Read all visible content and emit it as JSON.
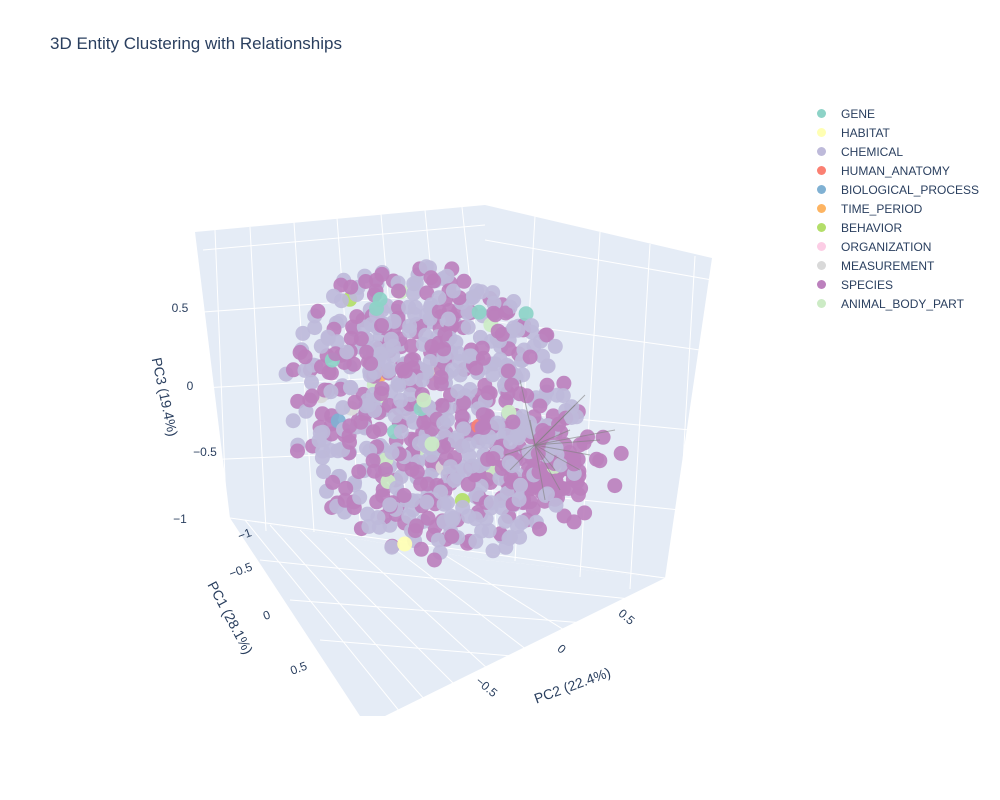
{
  "chart_data": {
    "type": "scatter3d",
    "title": "3D Entity Clustering with Relationships",
    "axes": {
      "x": {
        "label": "PC1 (28.1%)",
        "ticks": [
          "−1",
          "−0.5",
          "0",
          "0.5"
        ],
        "range": [
          -1,
          1
        ]
      },
      "y": {
        "label": "PC2 (22.4%)",
        "ticks": [
          "−0.5",
          "0",
          "0.5"
        ],
        "range": [
          -1,
          1
        ]
      },
      "z": {
        "label": "PC3 (19.4%)",
        "ticks": [
          "−1",
          "−0.5",
          "0",
          "0.5"
        ],
        "range": [
          -1,
          0.9
        ]
      }
    },
    "legend_position": "top-right",
    "series": [
      {
        "name": "GENE",
        "color": "#8dd3c7",
        "approx_count": 8
      },
      {
        "name": "HABITAT",
        "color": "#ffffb3",
        "approx_count": 2
      },
      {
        "name": "CHEMICAL",
        "color": "#bebada",
        "approx_count": 420
      },
      {
        "name": "HUMAN_ANATOMY",
        "color": "#fb8072",
        "approx_count": 2
      },
      {
        "name": "BIOLOGICAL_PROCESS",
        "color": "#80b1d3",
        "approx_count": 2
      },
      {
        "name": "TIME_PERIOD",
        "color": "#fdb462",
        "approx_count": 1
      },
      {
        "name": "BEHAVIOR",
        "color": "#b3de69",
        "approx_count": 2
      },
      {
        "name": "ORGANIZATION",
        "color": "#fccde5",
        "approx_count": 1
      },
      {
        "name": "MEASUREMENT",
        "color": "#d9d9d9",
        "approx_count": 3
      },
      {
        "name": "SPECIES",
        "color": "#bc80bd",
        "approx_count": 420
      },
      {
        "name": "ANIMAL_BODY_PART",
        "color": "#ccebc5",
        "approx_count": 12
      }
    ],
    "relationship_hub": {
      "description": "edges radiating from a central hub node",
      "edge_color": "#808080"
    },
    "background_color": "#e5ecf6",
    "grid": true
  }
}
